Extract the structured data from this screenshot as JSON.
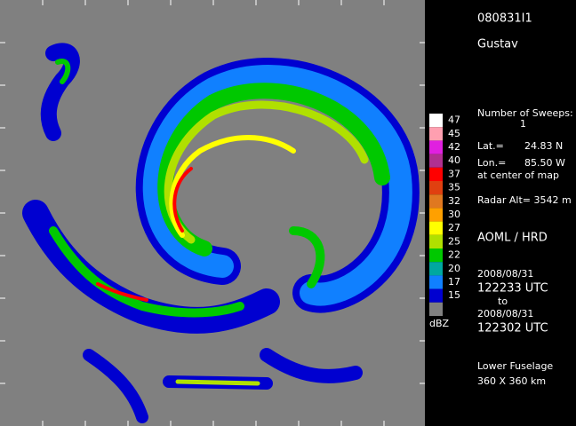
{
  "header": {
    "id": "080831I1",
    "storm": "Gustav"
  },
  "info": {
    "sweeps_label": "Number of Sweeps:",
    "sweeps": "1",
    "lat_label": "Lat.=",
    "lat": "24.83 N",
    "lon_label": "Lon.=",
    "lon": "85.50 W",
    "center_note": "at center of map",
    "radar_alt": "Radar Alt= 3542 m",
    "org": "AOML / HRD",
    "start_date": "2008/08/31",
    "start_time": "122233 UTC",
    "to": "to",
    "end_date": "2008/08/31",
    "end_time": "122302 UTC",
    "antenna": "Lower Fuselage",
    "domain": "360 X 360 km"
  },
  "legend": {
    "unit": "dBZ",
    "levels": [
      {
        "label": "47",
        "color": "#ffffff"
      },
      {
        "label": "45",
        "color": "#ff9fb0"
      },
      {
        "label": "42",
        "color": "#e020e0"
      },
      {
        "label": "40",
        "color": "#b03090"
      },
      {
        "label": "37",
        "color": "#ff0000"
      },
      {
        "label": "35",
        "color": "#e04010"
      },
      {
        "label": "32",
        "color": "#e07820"
      },
      {
        "label": "30",
        "color": "#ffa000"
      },
      {
        "label": "27",
        "color": "#ffff00"
      },
      {
        "label": "25",
        "color": "#b0e000"
      },
      {
        "label": "22",
        "color": "#00c800"
      },
      {
        "label": "20",
        "color": "#00a8a0"
      },
      {
        "label": "17",
        "color": "#1080ff"
      },
      {
        "label": "15",
        "color": "#0000d0"
      }
    ]
  }
}
